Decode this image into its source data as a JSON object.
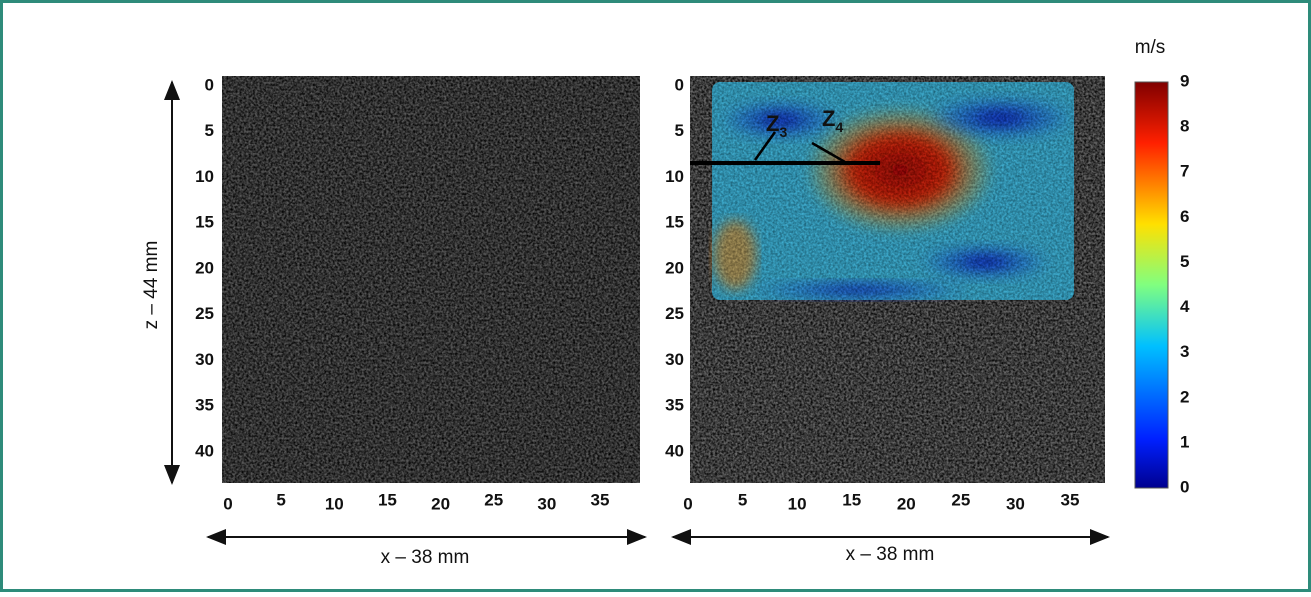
{
  "left_panel": {
    "y_label": "z – 44 mm",
    "x_label": "x – 38 mm",
    "yticks": [
      0,
      5,
      10,
      15,
      20,
      25,
      30,
      35,
      40
    ],
    "xticks": [
      0,
      5,
      10,
      15,
      20,
      25,
      30,
      35
    ]
  },
  "right_panel": {
    "x_label": "x – 38 mm",
    "yticks": [
      0,
      5,
      10,
      15,
      20,
      25,
      30,
      35,
      40
    ],
    "xticks": [
      0,
      5,
      10,
      15,
      20,
      25,
      30,
      35
    ],
    "annotations": [
      {
        "text": "Z",
        "subscript": "3"
      },
      {
        "text": "Z",
        "subscript": "4"
      }
    ]
  },
  "colorbar": {
    "unit": "m/s",
    "ticks": [
      0,
      1,
      2,
      3,
      4,
      5,
      6,
      7,
      8,
      9
    ]
  }
}
